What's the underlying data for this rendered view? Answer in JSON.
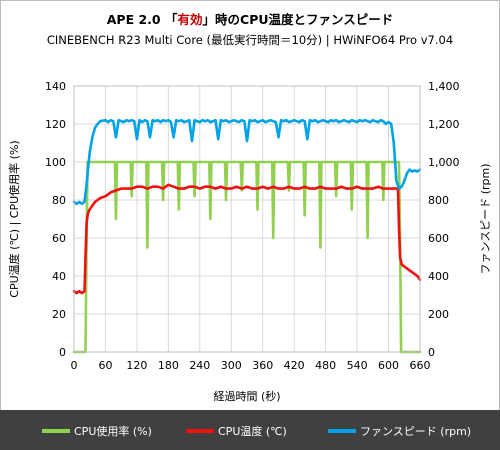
{
  "title": {
    "prefix": "APE 2.0",
    "open_bracket": "「",
    "accent": "有効",
    "close_bracket": "」",
    "suffix": "時のCPU温度とファンスピード",
    "accent_color": "#c00000"
  },
  "subtitle": "CINEBENCH R23 Multi Core (最低実行時間＝10分) | HWiNFO64  Pro v7.04",
  "chart_data": {
    "type": "line",
    "xlabel": "経過時間 (秒)",
    "ylabel_left": "CPU温度 (℃) | CPU使用率 (%)",
    "ylabel_right": "ファンスピード (rpm)",
    "xlim": [
      0,
      660
    ],
    "ylim_left": [
      0,
      140
    ],
    "ylim_right": [
      0,
      1400
    ],
    "x_ticks": [
      0,
      60,
      120,
      180,
      240,
      300,
      360,
      420,
      480,
      540,
      600,
      660
    ],
    "y_left_ticks": [
      0,
      20,
      40,
      60,
      80,
      100,
      120,
      140
    ],
    "y_right_ticks": [
      "0",
      "200",
      "400",
      "600",
      "800",
      "1,000",
      "1,200",
      "1,400"
    ],
    "grid": true,
    "legend_position": "bottom",
    "series": [
      {
        "name": "CPU使用率 (%)",
        "axis": "left",
        "color": "#92d050",
        "x": [
          0,
          22,
          24,
          26,
          78,
          80,
          82,
          84,
          108,
          110,
          112,
          114,
          138,
          140,
          142,
          144,
          168,
          170,
          172,
          174,
          198,
          200,
          202,
          204,
          228,
          230,
          232,
          234,
          258,
          260,
          262,
          264,
          288,
          290,
          292,
          294,
          318,
          320,
          322,
          324,
          348,
          350,
          352,
          354,
          378,
          380,
          382,
          384,
          408,
          410,
          412,
          414,
          438,
          440,
          442,
          444,
          468,
          470,
          472,
          474,
          498,
          500,
          502,
          504,
          528,
          530,
          532,
          534,
          558,
          560,
          562,
          564,
          588,
          590,
          592,
          594,
          618,
          620,
          622,
          624,
          626,
          660
        ],
        "values": [
          0,
          0,
          60,
          100,
          100,
          70,
          100,
          100,
          100,
          82,
          100,
          100,
          100,
          55,
          100,
          100,
          100,
          80,
          100,
          100,
          100,
          75,
          100,
          100,
          100,
          82,
          100,
          100,
          100,
          70,
          100,
          100,
          100,
          80,
          100,
          100,
          100,
          85,
          100,
          100,
          100,
          75,
          100,
          100,
          100,
          60,
          100,
          100,
          100,
          85,
          100,
          100,
          100,
          72,
          100,
          100,
          100,
          55,
          100,
          100,
          100,
          82,
          100,
          100,
          100,
          75,
          100,
          100,
          100,
          60,
          100,
          100,
          100,
          80,
          100,
          100,
          100,
          100,
          60,
          0,
          0,
          0
        ]
      },
      {
        "name": "CPU温度 (℃)",
        "axis": "left",
        "color": "#ee1111",
        "x": [
          0,
          5,
          10,
          15,
          20,
          22,
          24,
          26,
          28,
          30,
          35,
          40,
          45,
          50,
          60,
          70,
          80,
          90,
          100,
          110,
          120,
          130,
          140,
          150,
          160,
          170,
          180,
          190,
          200,
          210,
          220,
          230,
          240,
          250,
          260,
          270,
          280,
          290,
          300,
          310,
          320,
          330,
          340,
          350,
          360,
          370,
          380,
          390,
          400,
          410,
          420,
          430,
          440,
          450,
          460,
          470,
          480,
          490,
          500,
          510,
          520,
          530,
          540,
          550,
          560,
          570,
          580,
          590,
          600,
          610,
          615,
          618,
          620,
          622,
          625,
          630,
          640,
          650,
          655,
          660
        ],
        "values": [
          32,
          31,
          32,
          31,
          32,
          50,
          68,
          72,
          74,
          75,
          77,
          79,
          80,
          81,
          82,
          84,
          85,
          86,
          86,
          86,
          87,
          87,
          86,
          87,
          87,
          86,
          88,
          87,
          86,
          86,
          87,
          87,
          86,
          87,
          87,
          86,
          87,
          86,
          86,
          87,
          86,
          87,
          86,
          86,
          87,
          86,
          87,
          86,
          86,
          87,
          86,
          86,
          87,
          86,
          86,
          87,
          86,
          86,
          86,
          87,
          86,
          86,
          87,
          86,
          86,
          86,
          87,
          86,
          86,
          86,
          86,
          86,
          65,
          50,
          46,
          45,
          43,
          41,
          40,
          38
        ]
      },
      {
        "name": "ファンスピード (rpm)",
        "axis": "right",
        "color": "#00a2e8",
        "x": [
          0,
          5,
          10,
          15,
          20,
          24,
          26,
          28,
          30,
          35,
          40,
          45,
          50,
          60,
          65,
          70,
          75,
          80,
          85,
          90,
          95,
          100,
          105,
          110,
          115,
          120,
          125,
          130,
          135,
          140,
          145,
          150,
          155,
          160,
          165,
          170,
          175,
          180,
          185,
          190,
          195,
          200,
          205,
          210,
          215,
          220,
          225,
          230,
          235,
          240,
          245,
          250,
          255,
          260,
          265,
          270,
          275,
          280,
          285,
          290,
          295,
          300,
          305,
          310,
          315,
          320,
          325,
          330,
          335,
          340,
          345,
          350,
          355,
          360,
          365,
          370,
          375,
          380,
          385,
          390,
          395,
          400,
          405,
          410,
          415,
          420,
          425,
          430,
          435,
          440,
          445,
          450,
          455,
          460,
          465,
          470,
          475,
          480,
          485,
          490,
          495,
          500,
          505,
          510,
          515,
          520,
          525,
          530,
          535,
          540,
          545,
          550,
          555,
          560,
          565,
          570,
          575,
          580,
          585,
          590,
          595,
          600,
          605,
          610,
          615,
          620,
          625,
          630,
          635,
          640,
          645,
          650,
          655,
          660
        ],
        "values": [
          790,
          780,
          790,
          780,
          790,
          880,
          940,
          1000,
          1050,
          1130,
          1180,
          1200,
          1215,
          1220,
          1210,
          1220,
          1215,
          1130,
          1220,
          1215,
          1210,
          1220,
          1215,
          1220,
          1215,
          1120,
          1220,
          1210,
          1220,
          1215,
          1130,
          1220,
          1215,
          1220,
          1210,
          1220,
          1215,
          1220,
          1210,
          1130,
          1220,
          1215,
          1220,
          1210,
          1215,
          1220,
          1110,
          1220,
          1215,
          1210,
          1220,
          1215,
          1220,
          1210,
          1215,
          1220,
          1120,
          1220,
          1215,
          1220,
          1210,
          1215,
          1220,
          1215,
          1210,
          1220,
          1215,
          1110,
          1220,
          1215,
          1220,
          1210,
          1215,
          1220,
          1210,
          1215,
          1220,
          1215,
          1210,
          1130,
          1220,
          1215,
          1220,
          1210,
          1215,
          1220,
          1215,
          1210,
          1220,
          1215,
          1120,
          1220,
          1215,
          1220,
          1210,
          1215,
          1220,
          1215,
          1210,
          1220,
          1215,
          1220,
          1210,
          1215,
          1220,
          1215,
          1210,
          1220,
          1215,
          1210,
          1220,
          1215,
          1220,
          1215,
          1210,
          1220,
          1215,
          1210,
          1220,
          1215,
          1200,
          1210,
          1200,
          1100,
          900,
          860,
          870,
          900,
          940,
          960,
          950,
          955,
          950,
          960
        ]
      }
    ]
  }
}
